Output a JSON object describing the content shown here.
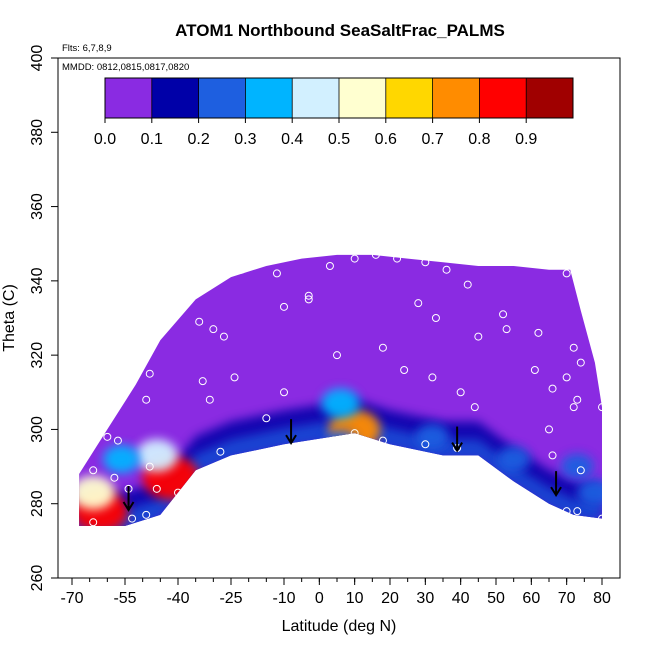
{
  "chart_data": {
    "type": "heatmap",
    "title": "ATOM1 Northbound SeaSaltFrac_PALMS",
    "flights_label": "Flts: 6,7,8,9",
    "dates_label": "MMDD: 0812,0815,0817,0820",
    "xlabel": "Latitude (deg N)",
    "ylabel": "Theta (C)",
    "xlim": [
      -70,
      80
    ],
    "ylim": [
      260,
      400
    ],
    "xticks": [
      "-70",
      "-55",
      "-40",
      "-25",
      "-10",
      "0",
      "10",
      "20",
      "30",
      "40",
      "50",
      "60",
      "70",
      "80"
    ],
    "yticks": [
      "260",
      "280",
      "300",
      "320",
      "340",
      "360",
      "380",
      "400"
    ],
    "colorbar": {
      "ticks": [
        "0.0",
        "0.1",
        "0.2",
        "0.3",
        "0.4",
        "0.5",
        "0.6",
        "0.7",
        "0.8",
        "0.9"
      ],
      "range": [
        0,
        1
      ],
      "colors": [
        "#8a2be2",
        "#0000a8",
        "#1e5fe0",
        "#00b4ff",
        "#d2f0ff",
        "#ffffd0",
        "#ffd700",
        "#ff8c00",
        "#ff0000",
        "#a00000"
      ]
    },
    "data_boundary": {
      "top": [
        [
          -68,
          288
        ],
        [
          -60,
          300
        ],
        [
          -52,
          312
        ],
        [
          -45,
          324
        ],
        [
          -35,
          335
        ],
        [
          -25,
          341
        ],
        [
          -15,
          344
        ],
        [
          -5,
          346
        ],
        [
          5,
          347
        ],
        [
          15,
          347
        ],
        [
          25,
          346
        ],
        [
          35,
          345
        ],
        [
          45,
          344
        ],
        [
          55,
          344
        ],
        [
          65,
          343
        ],
        [
          71,
          343
        ],
        [
          74,
          332
        ],
        [
          78,
          318
        ],
        [
          80,
          306
        ]
      ],
      "bottom": [
        [
          -68,
          274
        ],
        [
          -55,
          274
        ],
        [
          -45,
          277
        ],
        [
          -35,
          289
        ],
        [
          -25,
          293
        ],
        [
          -10,
          296
        ],
        [
          10,
          299
        ],
        [
          20,
          296
        ],
        [
          35,
          293
        ],
        [
          45,
          293
        ],
        [
          55,
          286
        ],
        [
          65,
          280
        ],
        [
          72,
          277
        ],
        [
          80,
          276
        ]
      ]
    },
    "features": [
      {
        "x": -62,
        "y": 278,
        "value": 0.8
      },
      {
        "x": -64,
        "y": 283,
        "value": 0.5
      },
      {
        "x": -42,
        "y": 287,
        "value": 0.85
      },
      {
        "x": -46,
        "y": 293,
        "value": 0.45
      },
      {
        "x": -56,
        "y": 292,
        "value": 0.3
      },
      {
        "x": 10,
        "y": 300,
        "value": 0.7
      },
      {
        "x": 6,
        "y": 307,
        "value": 0.35
      },
      {
        "x": 6,
        "y": 296,
        "value": 0.25
      },
      {
        "x": 32,
        "y": 298,
        "value": 0.2
      },
      {
        "x": 55,
        "y": 292,
        "value": 0.2
      },
      {
        "x": 78,
        "y": 283,
        "value": 0.25
      },
      {
        "x": 73,
        "y": 290,
        "value": 0.2
      }
    ],
    "sample_points": [
      [
        -46,
        347
      ],
      [
        -28,
        341
      ],
      [
        -22,
        343
      ],
      [
        -12,
        342
      ],
      [
        -3,
        336
      ],
      [
        3,
        344
      ],
      [
        10,
        346
      ],
      [
        16,
        347
      ],
      [
        22,
        346
      ],
      [
        30,
        345
      ],
      [
        36,
        343
      ],
      [
        42,
        339
      ],
      [
        52,
        331
      ],
      [
        62,
        326
      ],
      [
        70,
        342
      ],
      [
        -34,
        329
      ],
      [
        -30,
        327
      ],
      [
        -27,
        325
      ],
      [
        -10,
        333
      ],
      [
        -3,
        335
      ],
      [
        18,
        322
      ],
      [
        28,
        334
      ],
      [
        33,
        330
      ],
      [
        45,
        325
      ],
      [
        53,
        327
      ],
      [
        -48,
        315
      ],
      [
        -33,
        313
      ],
      [
        -24,
        314
      ],
      [
        -10,
        310
      ],
      [
        5,
        320
      ],
      [
        24,
        316
      ],
      [
        32,
        314
      ],
      [
        40,
        310
      ],
      [
        61,
        316
      ],
      [
        66,
        311
      ],
      [
        70,
        314
      ],
      [
        72,
        322
      ],
      [
        74,
        318
      ],
      [
        -49,
        308
      ],
      [
        -31,
        308
      ],
      [
        -15,
        303
      ],
      [
        10,
        299
      ],
      [
        18,
        297
      ],
      [
        30,
        296
      ],
      [
        39,
        295
      ],
      [
        44,
        306
      ],
      [
        65,
        300
      ],
      [
        72,
        306
      ],
      [
        73,
        308
      ],
      [
        80,
        306
      ],
      [
        -60,
        298
      ],
      [
        -57,
        297
      ],
      [
        -48,
        290
      ],
      [
        -28,
        294
      ],
      [
        -18,
        290
      ],
      [
        4,
        297
      ],
      [
        66,
        293
      ],
      [
        74,
        289
      ],
      [
        -64,
        289
      ],
      [
        -58,
        287
      ],
      [
        -54,
        284
      ],
      [
        -46,
        284
      ],
      [
        -40,
        283
      ],
      [
        -36,
        286
      ],
      [
        -64,
        275
      ],
      [
        -53,
        276
      ],
      [
        -49,
        277
      ],
      [
        70,
        278
      ],
      [
        73,
        278
      ],
      [
        80,
        276
      ]
    ],
    "arrows": [
      [
        -54,
        281
      ],
      [
        -8,
        299
      ],
      [
        39,
        297
      ],
      [
        67,
        285
      ]
    ],
    "grid": false,
    "legend": "none"
  }
}
